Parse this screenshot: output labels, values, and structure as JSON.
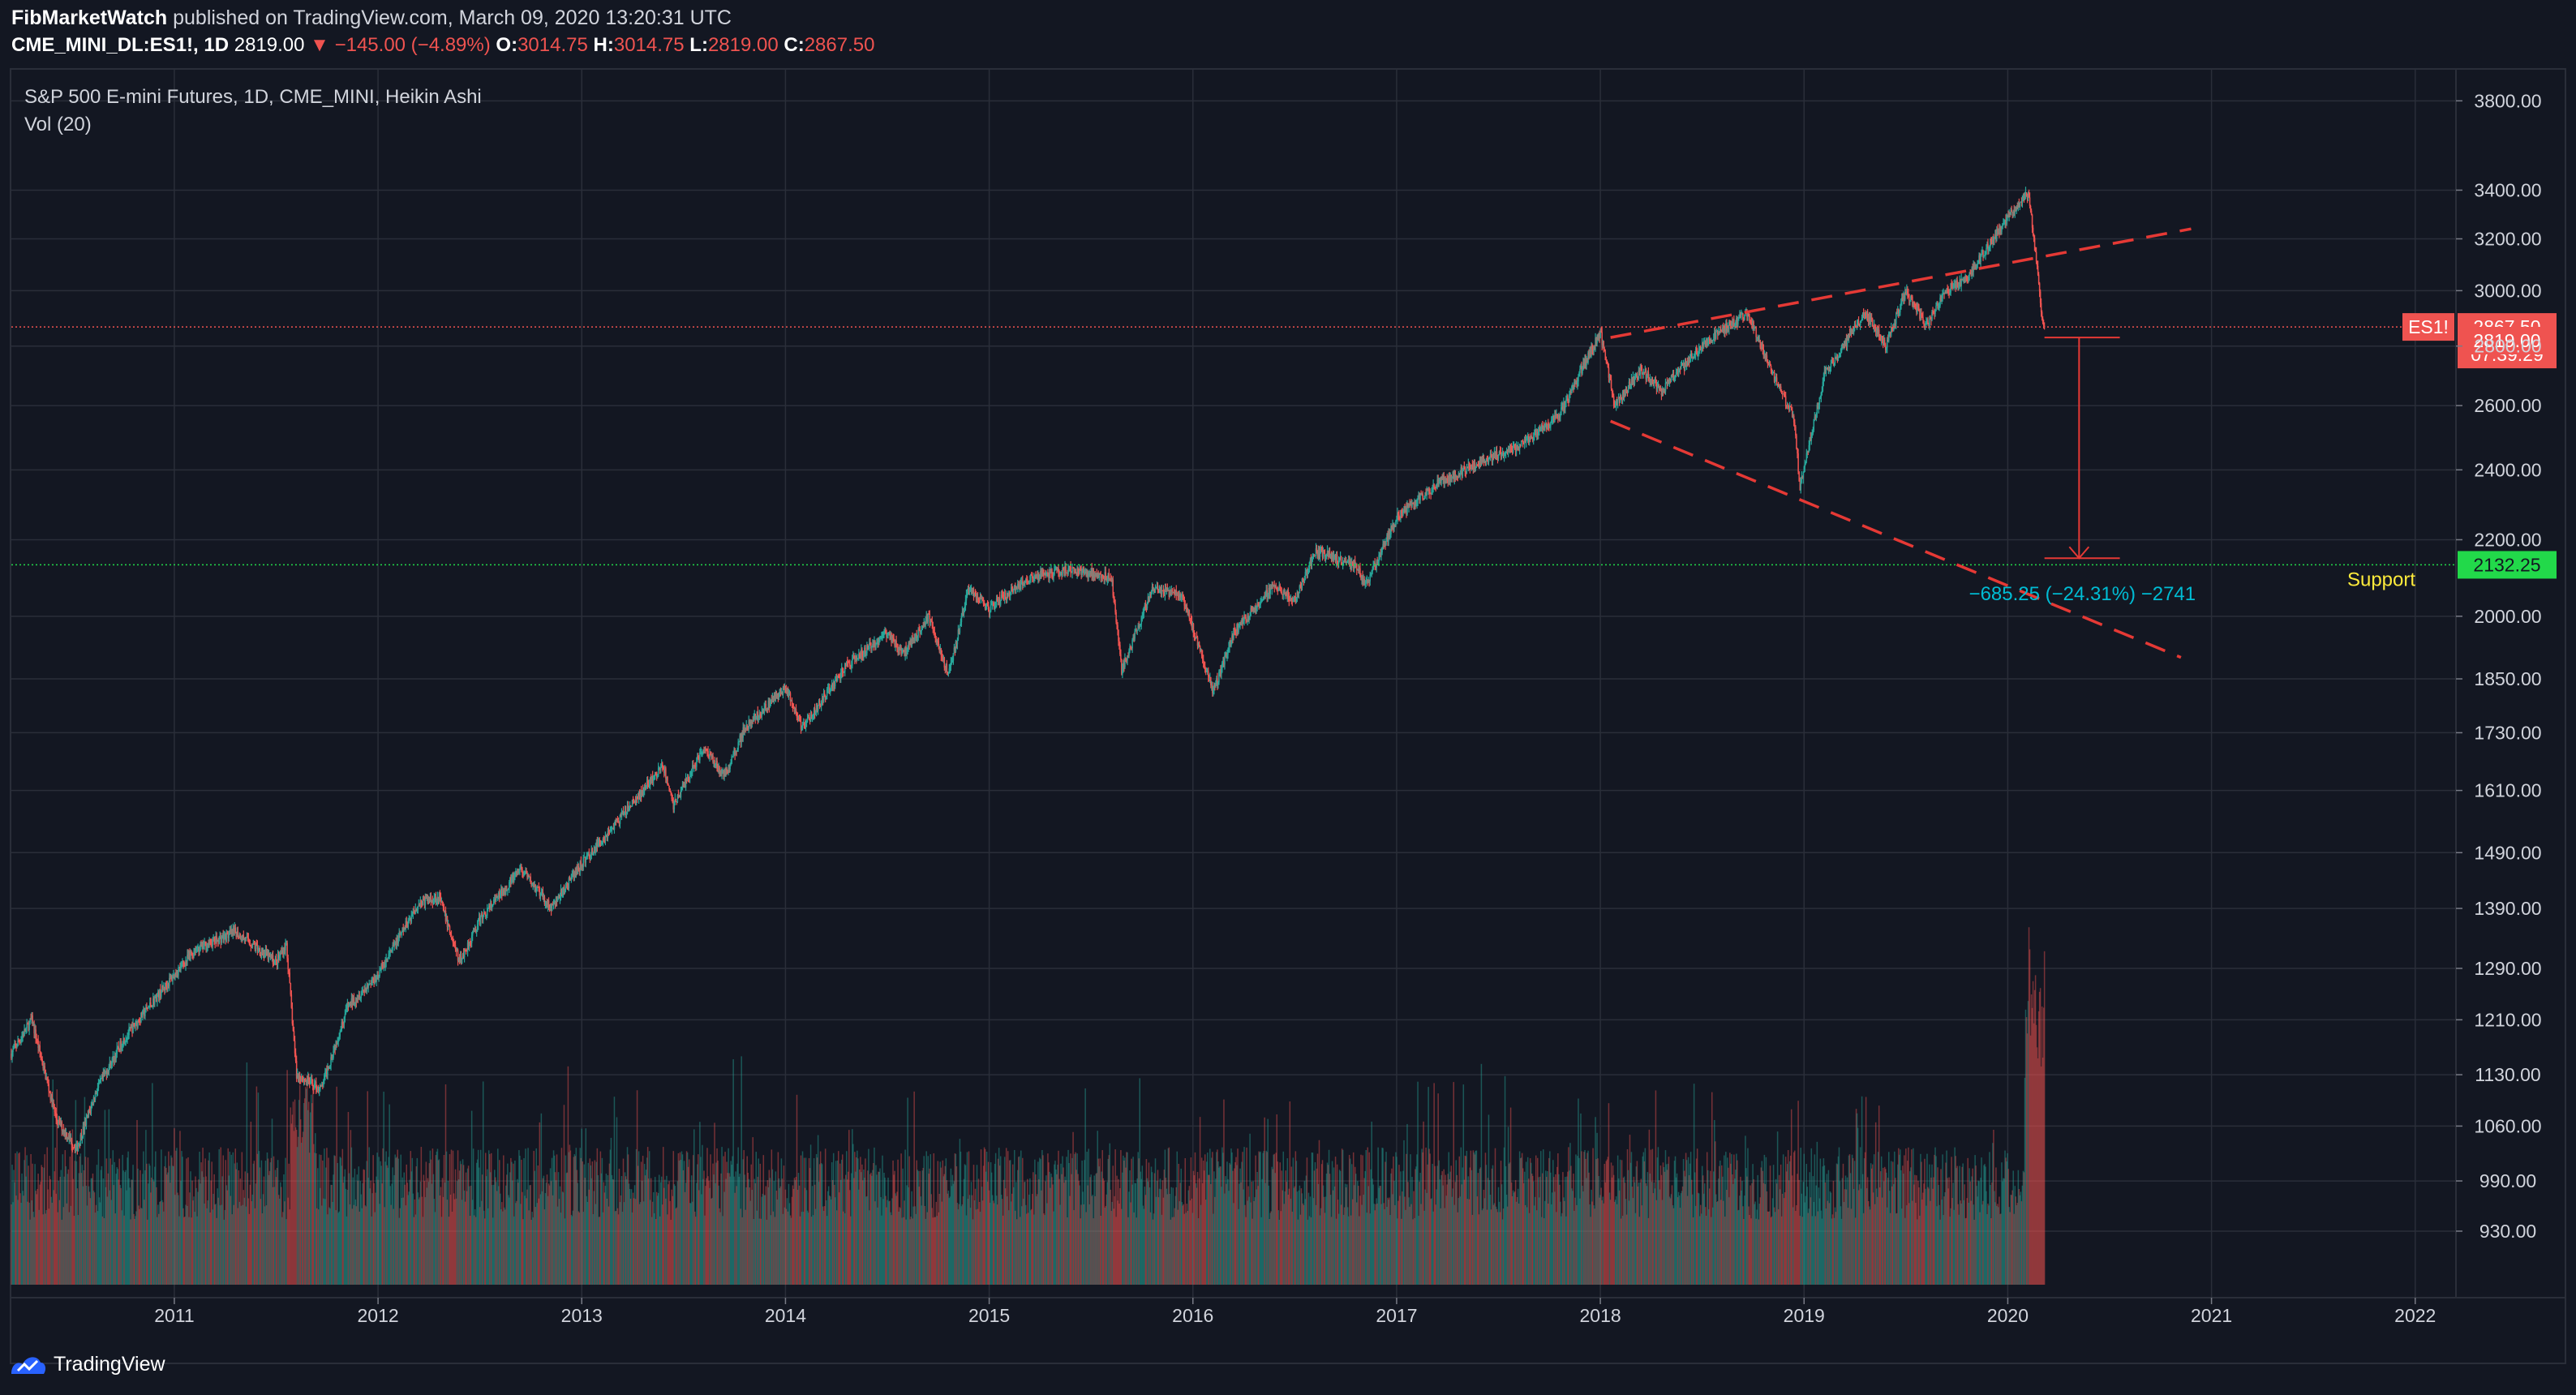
{
  "header": {
    "author": "FibMarketWatch",
    "published": "published on TradingView.com, March 09, 2020 13:20:31 UTC",
    "symbol_line": "CME_MINI_DL:ES1!, 1D",
    "last": "2819.00",
    "change": "−145.00 (−4.89%)",
    "o_label": "O:",
    "o": "3014.75",
    "h_label": "H:",
    "h": "3014.75",
    "l_label": "L:",
    "l": "2819.00",
    "c_label": "C:",
    "c": "2867.50"
  },
  "footer": {
    "brand": "TradingView"
  },
  "colors": {
    "up": "#26a69a",
    "down": "#ef5350",
    "bg": "#131722",
    "grid": "#2a2e39",
    "support": "#22d94a",
    "annotation": "#00bcd4",
    "support_label": "#ffeb3b"
  },
  "chart_data": {
    "type": "candlestick",
    "title": "S&P 500 E-mini Futures, 1D, CME_MINI, Heikin Ashi",
    "indicator": "Vol (20)",
    "y_scale": "log",
    "ylim": [
      870,
      3950
    ],
    "y_ticks": [
      "3800.00",
      "3400.00",
      "3200.00",
      "3000.00",
      "2800.00",
      "2600.00",
      "2400.00",
      "2200.00",
      "2000.00",
      "1850.00",
      "1730.00",
      "1610.00",
      "1490.00",
      "1390.00",
      "1290.00",
      "1210.00",
      "1130.00",
      "1060.00",
      "990.00",
      "930.00"
    ],
    "xlim": [
      2010.2,
      2022.2
    ],
    "x_ticks": [
      "2011",
      "2012",
      "2013",
      "2014",
      "2015",
      "2016",
      "2017",
      "2018",
      "2019",
      "2020",
      "2021",
      "2022"
    ],
    "price_path": [
      [
        2010.2,
        1160
      ],
      [
        2010.3,
        1210
      ],
      [
        2010.42,
        1070
      ],
      [
        2010.52,
        1030
      ],
      [
        2010.62,
        1110
      ],
      [
        2010.75,
        1180
      ],
      [
        2010.9,
        1240
      ],
      [
        2011.1,
        1320
      ],
      [
        2011.3,
        1350
      ],
      [
        2011.5,
        1300
      ],
      [
        2011.55,
        1330
      ],
      [
        2011.6,
        1130
      ],
      [
        2011.72,
        1110
      ],
      [
        2011.85,
        1230
      ],
      [
        2012.0,
        1280
      ],
      [
        2012.2,
        1400
      ],
      [
        2012.3,
        1410
      ],
      [
        2012.4,
        1300
      ],
      [
        2012.5,
        1370
      ],
      [
        2012.7,
        1460
      ],
      [
        2012.85,
        1390
      ],
      [
        2013.0,
        1470
      ],
      [
        2013.2,
        1560
      ],
      [
        2013.4,
        1660
      ],
      [
        2013.45,
        1580
      ],
      [
        2013.6,
        1700
      ],
      [
        2013.7,
        1640
      ],
      [
        2013.8,
        1740
      ],
      [
        2014.0,
        1830
      ],
      [
        2014.08,
        1740
      ],
      [
        2014.3,
        1880
      ],
      [
        2014.5,
        1960
      ],
      [
        2014.58,
        1910
      ],
      [
        2014.7,
        2000
      ],
      [
        2014.8,
        1860
      ],
      [
        2014.9,
        2070
      ],
      [
        2015.0,
        2020
      ],
      [
        2015.2,
        2100
      ],
      [
        2015.4,
        2120
      ],
      [
        2015.6,
        2100
      ],
      [
        2015.65,
        1870
      ],
      [
        2015.8,
        2070
      ],
      [
        2015.95,
        2050
      ],
      [
        2016.1,
        1820
      ],
      [
        2016.2,
        1960
      ],
      [
        2016.4,
        2080
      ],
      [
        2016.5,
        2040
      ],
      [
        2016.6,
        2170
      ],
      [
        2016.8,
        2130
      ],
      [
        2016.85,
        2080
      ],
      [
        2017.0,
        2260
      ],
      [
        2017.2,
        2360
      ],
      [
        2017.4,
        2420
      ],
      [
        2017.6,
        2470
      ],
      [
        2017.8,
        2570
      ],
      [
        2018.0,
        2850
      ],
      [
        2018.07,
        2600
      ],
      [
        2018.2,
        2720
      ],
      [
        2018.3,
        2650
      ],
      [
        2018.5,
        2800
      ],
      [
        2018.72,
        2920
      ],
      [
        2018.85,
        2700
      ],
      [
        2018.95,
        2560
      ],
      [
        2018.98,
        2350
      ],
      [
        2019.1,
        2700
      ],
      [
        2019.3,
        2920
      ],
      [
        2019.4,
        2800
      ],
      [
        2019.5,
        3000
      ],
      [
        2019.6,
        2870
      ],
      [
        2019.7,
        3000
      ],
      [
        2019.8,
        3050
      ],
      [
        2019.95,
        3230
      ],
      [
        2020.1,
        3390
      ],
      [
        2020.12,
        3260
      ],
      [
        2020.16,
        2960
      ],
      [
        2020.18,
        2850
      ]
    ],
    "last_price": 2867.5,
    "last_low": 2819.0,
    "price_labels": {
      "symbol": "ES1!",
      "last": "2867.50",
      "countdown": "07:39:29",
      "low": "2819.00",
      "support": "2132.25"
    },
    "support": {
      "value": 2132.25,
      "label": "Support"
    },
    "measure": {
      "from": 2830,
      "to": 2150,
      "x": 2020.35,
      "label": "−685.25 (−24.31%) −2741"
    },
    "trendlines": [
      {
        "name": "upper-trendline",
        "style": "dashed",
        "x1": 2018.05,
        "y1": 2830,
        "x2": 2020.9,
        "y2": 3240
      },
      {
        "name": "lower-trendline",
        "style": "dashed",
        "x1": 2018.05,
        "y1": 2550,
        "x2": 2020.85,
        "y2": 1900
      }
    ]
  }
}
